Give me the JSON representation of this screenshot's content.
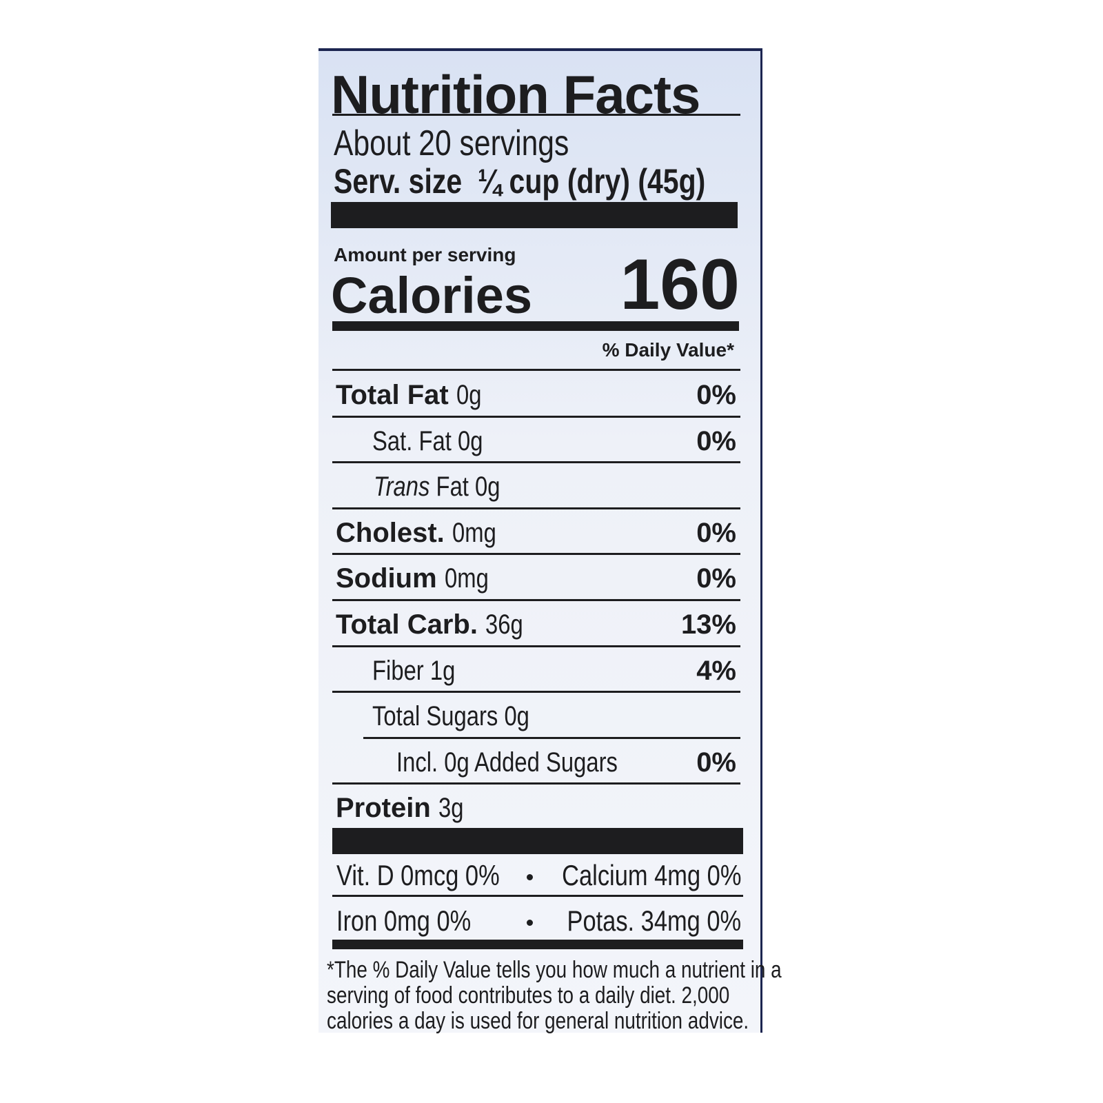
{
  "title": "Nutrition Facts",
  "servings": "About 20 servings",
  "serving_size": {
    "label": "Serv. size",
    "value": "¼ cup (dry) (45g)"
  },
  "amount_per_serving": "Amount per serving",
  "calories": {
    "label": "Calories",
    "value": "160"
  },
  "daily_value_header": "% Daily Value*",
  "rows": [
    {
      "name": "Total Fat",
      "amount": "0g",
      "dv": "0%",
      "style": "bold"
    },
    {
      "name": "Sat. Fat",
      "amount": "0g",
      "dv": "0%",
      "style": "indent"
    },
    {
      "name": "Trans",
      "amount": "Fat 0g",
      "style": "italic"
    },
    {
      "name": "Cholest.",
      "amount": "0mg",
      "dv": "0%",
      "style": "bold"
    },
    {
      "name": "Sodium",
      "amount": "0mg",
      "dv": "0%",
      "style": "bold"
    },
    {
      "name": "Total Carb.",
      "amount": "36g",
      "dv": "13%",
      "style": "bold"
    },
    {
      "name": "Fiber",
      "amount": "1g",
      "dv": "4%",
      "style": "indent"
    },
    {
      "name": "Total Sugars",
      "amount": "0g",
      "style": "indent"
    },
    {
      "name": "Incl. 0g Added Sugars",
      "dv": "0%",
      "style": "indent2"
    },
    {
      "name": "Protein",
      "amount": "3g",
      "style": "bold"
    }
  ],
  "vitamins": [
    [
      "Vit. D 0mcg 0%",
      "Calcium 4mg 0%"
    ],
    [
      "Iron 0mg 0%",
      "Potas. 34mg 0%"
    ]
  ],
  "footnote": [
    "*The % Daily Value tells you how much a nutrient in a",
    "serving of food contributes to a daily diet. 2,000",
    "calories a day is used for general nutrition advice."
  ]
}
